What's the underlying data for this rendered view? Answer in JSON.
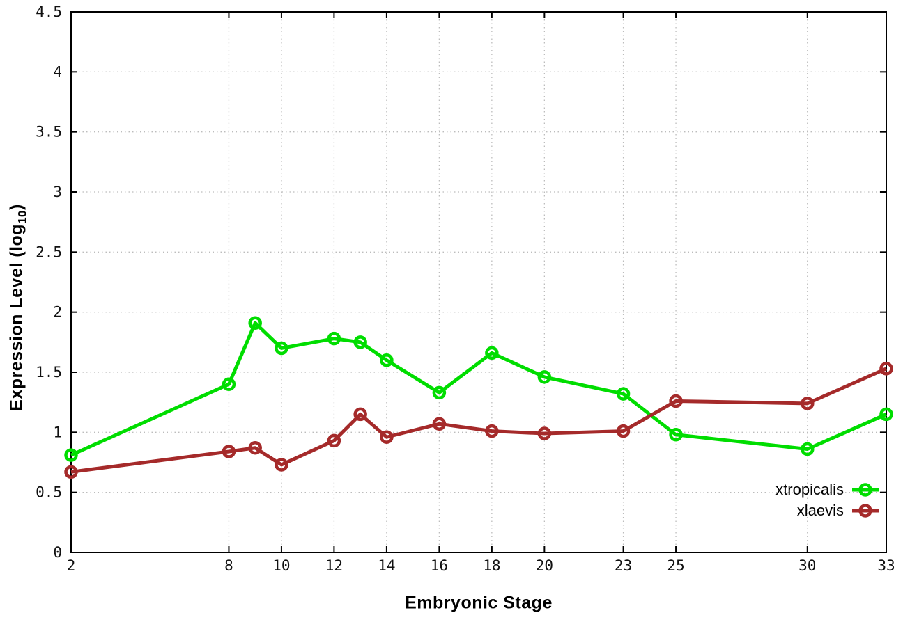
{
  "figure": {
    "background": "#ffffff",
    "frame_color": "#000000",
    "grid_color": "#bcbcbc",
    "tick_text_color": "#111111"
  },
  "chart_data": {
    "type": "line",
    "title": "",
    "xlabel": "Embryonic Stage",
    "ylabel": "Expression Level (log10)",
    "ylabel_parts": {
      "prefix": "Expression Level (log",
      "subscript": "10",
      "suffix": ")"
    },
    "xlim": [
      2,
      33
    ],
    "ylim": [
      0,
      4.5
    ],
    "grid": true,
    "legend_position": "bottom-right",
    "marker": "open-circle",
    "x": [
      2,
      8,
      9,
      10,
      12,
      13,
      14,
      16,
      18,
      20,
      23,
      25,
      30,
      33
    ],
    "series": [
      {
        "name": "xtropicalis",
        "color": "#00dd00",
        "values": [
          0.81,
          1.4,
          1.91,
          1.7,
          1.78,
          1.75,
          1.6,
          1.33,
          1.66,
          1.46,
          1.32,
          0.98,
          0.86,
          1.15
        ]
      },
      {
        "name": "xlaevis",
        "color": "#a52a2a",
        "values": [
          0.67,
          0.84,
          0.87,
          0.73,
          0.93,
          1.15,
          0.96,
          1.07,
          1.01,
          0.99,
          1.01,
          1.26,
          1.24,
          1.53
        ]
      }
    ],
    "x_ticks": {
      "values": [
        2,
        8,
        10,
        12,
        14,
        16,
        18,
        20,
        23,
        25,
        30,
        33
      ],
      "labels": [
        "2",
        "8",
        "10",
        "12",
        "14",
        "16",
        "18",
        "20",
        "23",
        "25",
        "30",
        "33"
      ]
    },
    "y_ticks": {
      "values": [
        0,
        0.5,
        1,
        1.5,
        2,
        2.5,
        3,
        3.5,
        4,
        4.5
      ],
      "labels": [
        "0",
        "0.5",
        "1",
        "1.5",
        "2",
        "2.5",
        "3",
        "3.5",
        "4",
        "4.5"
      ]
    }
  }
}
